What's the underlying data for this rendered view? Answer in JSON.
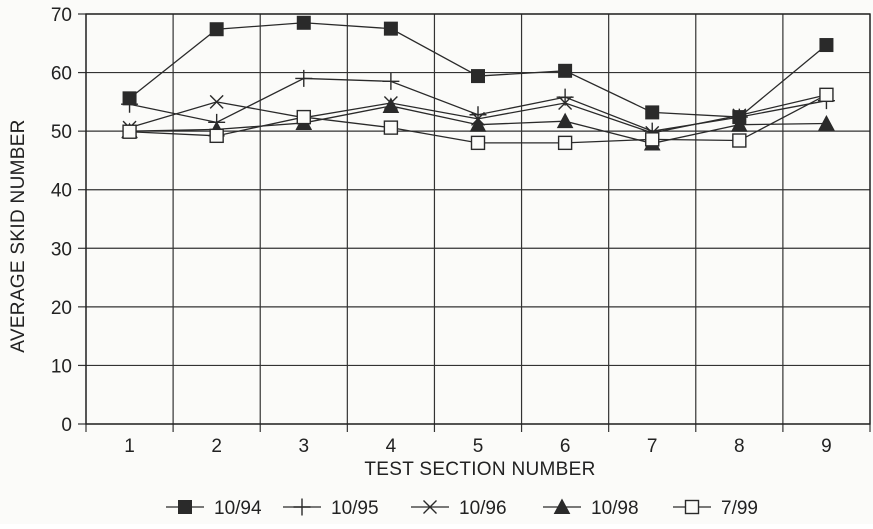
{
  "chart_data": {
    "type": "line",
    "xlabel": "TEST SECTION NUMBER",
    "ylabel": "AVERAGE SKID NUMBER",
    "x": [
      1,
      2,
      3,
      4,
      5,
      6,
      7,
      8,
      9
    ],
    "xlim": [
      0.5,
      9.5
    ],
    "ylim": [
      0,
      70
    ],
    "yticks": [
      0,
      10,
      20,
      30,
      40,
      50,
      60,
      70
    ],
    "grid": true,
    "legend_position": "bottom",
    "series": [
      {
        "name": "10/94",
        "marker": "filled-square",
        "values": [
          55.6,
          67.4,
          68.5,
          67.5,
          59.4,
          60.3,
          53.2,
          52.4,
          64.7
        ]
      },
      {
        "name": "10/95",
        "marker": "plus",
        "values": [
          54.6,
          51.5,
          59.0,
          58.5,
          52.8,
          55.8,
          50.0,
          52.4,
          55.2
        ]
      },
      {
        "name": "10/96",
        "marker": "x",
        "values": [
          50.6,
          55.0,
          52.3,
          54.8,
          52.1,
          54.8,
          49.7,
          52.7,
          56.2
        ]
      },
      {
        "name": "10/98",
        "marker": "filled-triangle",
        "values": [
          50.0,
          50.3,
          51.4,
          54.3,
          51.1,
          51.7,
          47.9,
          51.1,
          51.3
        ]
      },
      {
        "name": "7/99",
        "marker": "open-square",
        "values": [
          49.9,
          49.2,
          52.4,
          50.6,
          48.0,
          48.0,
          48.6,
          48.4,
          56.2
        ]
      }
    ]
  }
}
